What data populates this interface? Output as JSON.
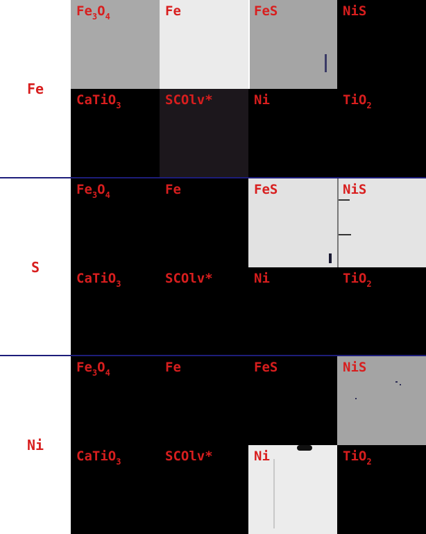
{
  "colors": {
    "label_red": "#d81e1e",
    "divider": "#1d1d7a",
    "background": "#ffffff"
  },
  "sections": [
    {
      "element": "Fe",
      "tiles": [
        {
          "base": "Fe",
          "sub1": "3",
          "mid": "O",
          "sub2": "4",
          "intensity": "mid-gray",
          "color": "#a9a9a9"
        },
        {
          "base": "Fe",
          "sub1": "",
          "mid": "",
          "sub2": "",
          "intensity": "light",
          "color": "#ebebeb"
        },
        {
          "base": "FeS",
          "sub1": "",
          "mid": "",
          "sub2": "",
          "intensity": "gray",
          "color": "#a5a5a5"
        },
        {
          "base": "NiS",
          "sub1": "",
          "mid": "",
          "sub2": "",
          "intensity": "black",
          "color": "#000000"
        },
        {
          "base": "CaTiO",
          "sub1": "3",
          "mid": "",
          "sub2": "",
          "intensity": "black",
          "color": "#000000"
        },
        {
          "base": "SCOlv*",
          "sub1": "",
          "mid": "",
          "sub2": "",
          "intensity": "very-dark",
          "color": "#1c171c"
        },
        {
          "base": "Ni",
          "sub1": "",
          "mid": "",
          "sub2": "",
          "intensity": "black",
          "color": "#000000"
        },
        {
          "base": "TiO",
          "sub1": "2",
          "mid": "",
          "sub2": "",
          "intensity": "black",
          "color": "#000000"
        }
      ]
    },
    {
      "element": "S",
      "tiles": [
        {
          "base": "Fe",
          "sub1": "3",
          "mid": "O",
          "sub2": "4",
          "intensity": "black",
          "color": "#000000"
        },
        {
          "base": "Fe",
          "sub1": "",
          "mid": "",
          "sub2": "",
          "intensity": "black",
          "color": "#000000"
        },
        {
          "base": "FeS",
          "sub1": "",
          "mid": "",
          "sub2": "",
          "intensity": "light",
          "color": "#e2e2e2"
        },
        {
          "base": "NiS",
          "sub1": "",
          "mid": "",
          "sub2": "",
          "intensity": "light",
          "color": "#e4e4e4"
        },
        {
          "base": "CaTiO",
          "sub1": "3",
          "mid": "",
          "sub2": "",
          "intensity": "black",
          "color": "#000000"
        },
        {
          "base": "SCOlv*",
          "sub1": "",
          "mid": "",
          "sub2": "",
          "intensity": "black",
          "color": "#000000"
        },
        {
          "base": "Ni",
          "sub1": "",
          "mid": "",
          "sub2": "",
          "intensity": "black",
          "color": "#000000"
        },
        {
          "base": "TiO",
          "sub1": "2",
          "mid": "",
          "sub2": "",
          "intensity": "black",
          "color": "#000000"
        }
      ]
    },
    {
      "element": "Ni",
      "tiles": [
        {
          "base": "Fe",
          "sub1": "3",
          "mid": "O",
          "sub2": "4",
          "intensity": "black",
          "color": "#000000"
        },
        {
          "base": "Fe",
          "sub1": "",
          "mid": "",
          "sub2": "",
          "intensity": "black",
          "color": "#000000"
        },
        {
          "base": "FeS",
          "sub1": "",
          "mid": "",
          "sub2": "",
          "intensity": "black",
          "color": "#000000"
        },
        {
          "base": "NiS",
          "sub1": "",
          "mid": "",
          "sub2": "",
          "intensity": "gray",
          "color": "#a4a4a4"
        },
        {
          "base": "CaTiO",
          "sub1": "3",
          "mid": "",
          "sub2": "",
          "intensity": "black",
          "color": "#000000"
        },
        {
          "base": "SCOlv*",
          "sub1": "",
          "mid": "",
          "sub2": "",
          "intensity": "black",
          "color": "#000000"
        },
        {
          "base": "Ni",
          "sub1": "",
          "mid": "",
          "sub2": "",
          "intensity": "light",
          "color": "#ececec"
        },
        {
          "base": "TiO",
          "sub1": "2",
          "mid": "",
          "sub2": "",
          "intensity": "black",
          "color": "#000000"
        }
      ]
    }
  ]
}
